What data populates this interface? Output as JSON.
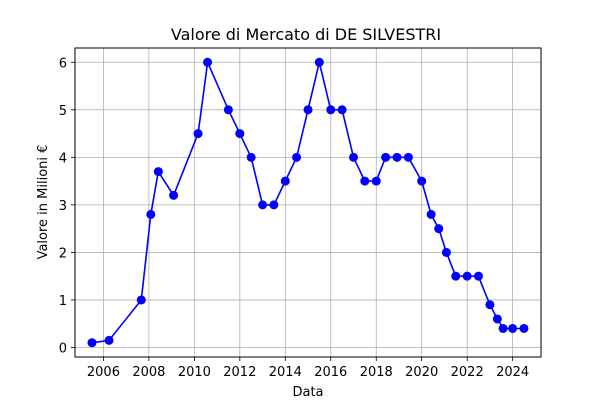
{
  "chart_data": {
    "type": "line",
    "title": "Valore di Mercato di DE SILVESTRI",
    "xlabel": "Data",
    "ylabel": "Valore in Milioni €",
    "x_axis": "date",
    "xlim": [
      "2004-10-01",
      "2025-04-01"
    ],
    "ylim": [
      -0.2,
      6.3
    ],
    "x_ticks": [
      "2006",
      "2008",
      "2010",
      "2012",
      "2014",
      "2016",
      "2018",
      "2020",
      "2022",
      "2024"
    ],
    "y_ticks": [
      0,
      1,
      2,
      3,
      4,
      5,
      6
    ],
    "grid": true,
    "series": [
      {
        "color": "#0000ff",
        "marker": "circle",
        "points": [
          {
            "x": "2005-07-01",
            "y": 0.1
          },
          {
            "x": "2006-04-01",
            "y": 0.15
          },
          {
            "x": "2007-09-01",
            "y": 1.0
          },
          {
            "x": "2008-02-01",
            "y": 2.8
          },
          {
            "x": "2008-06-01",
            "y": 3.7
          },
          {
            "x": "2009-02-01",
            "y": 3.2
          },
          {
            "x": "2010-03-01",
            "y": 4.5
          },
          {
            "x": "2010-08-01",
            "y": 6.0
          },
          {
            "x": "2011-07-01",
            "y": 5.0
          },
          {
            "x": "2012-01-01",
            "y": 4.5
          },
          {
            "x": "2012-07-01",
            "y": 4.0
          },
          {
            "x": "2013-01-01",
            "y": 3.0
          },
          {
            "x": "2013-07-01",
            "y": 3.0
          },
          {
            "x": "2014-01-01",
            "y": 3.5
          },
          {
            "x": "2014-07-01",
            "y": 4.0
          },
          {
            "x": "2015-01-01",
            "y": 5.0
          },
          {
            "x": "2015-07-01",
            "y": 6.0
          },
          {
            "x": "2016-01-01",
            "y": 5.0
          },
          {
            "x": "2016-07-01",
            "y": 5.0
          },
          {
            "x": "2017-01-01",
            "y": 4.0
          },
          {
            "x": "2017-07-01",
            "y": 3.5
          },
          {
            "x": "2018-01-01",
            "y": 3.5
          },
          {
            "x": "2018-06-01",
            "y": 4.0
          },
          {
            "x": "2018-12-01",
            "y": 4.0
          },
          {
            "x": "2019-06-01",
            "y": 4.0
          },
          {
            "x": "2020-01-01",
            "y": 3.5
          },
          {
            "x": "2020-06-01",
            "y": 2.8
          },
          {
            "x": "2020-10-01",
            "y": 2.5
          },
          {
            "x": "2021-02-01",
            "y": 2.0
          },
          {
            "x": "2021-07-01",
            "y": 1.5
          },
          {
            "x": "2022-01-01",
            "y": 1.5
          },
          {
            "x": "2022-07-01",
            "y": 1.5
          },
          {
            "x": "2023-01-01",
            "y": 0.9
          },
          {
            "x": "2023-05-01",
            "y": 0.6
          },
          {
            "x": "2023-08-01",
            "y": 0.4
          },
          {
            "x": "2024-01-01",
            "y": 0.4
          },
          {
            "x": "2024-07-01",
            "y": 0.4
          }
        ]
      }
    ]
  }
}
